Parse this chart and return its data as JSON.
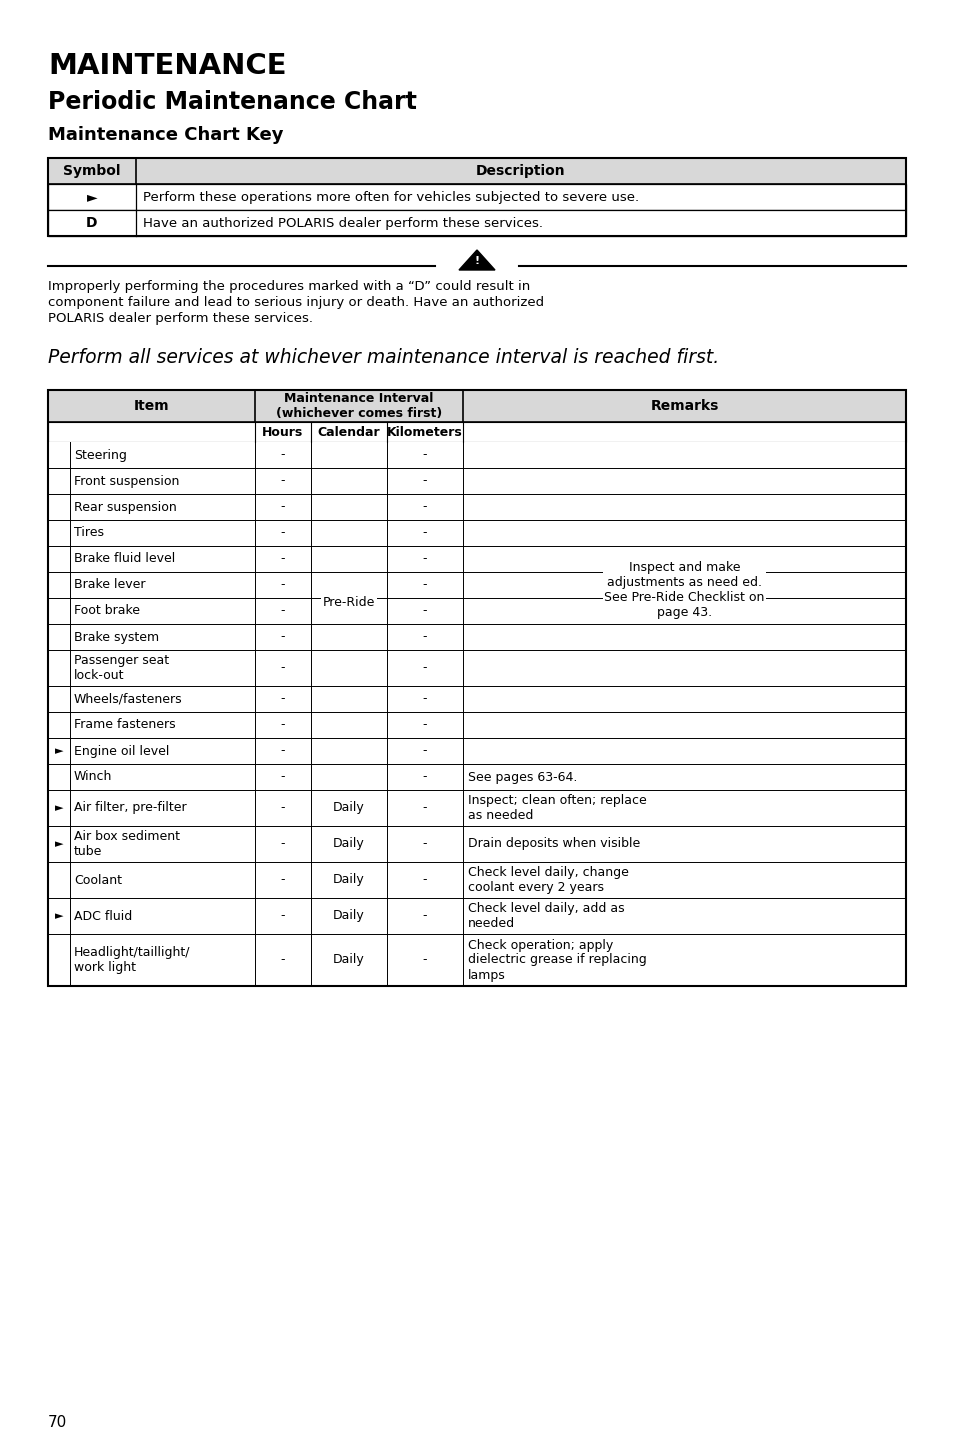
{
  "title1": "MAINTENANCE",
  "title2": "Periodic Maintenance Chart",
  "title3": "Maintenance Chart Key",
  "key_headers": [
    "Symbol",
    "Description"
  ],
  "key_rows": [
    [
      "►",
      "Perform these operations more often for vehicles subjected to severe use."
    ],
    [
      "D",
      "Have an authorized POLARIS dealer perform these services."
    ]
  ],
  "warning_text_line1": "Improperly performing the procedures marked with a “D” could result in",
  "warning_text_line2": "component failure and lead to serious injury or death. Have an authorized",
  "warning_text_line3": "POLARIS dealer perform these services.",
  "perform_text": "Perform all services at whichever maintenance interval is reached first.",
  "sub_headers": [
    "Hours",
    "Calendar",
    "Kilometers"
  ],
  "rows": [
    {
      "symbol": "",
      "item": "Steering",
      "hours": "-",
      "calendar": "",
      "km": "-",
      "remarks": ""
    },
    {
      "symbol": "",
      "item": "Front suspension",
      "hours": "-",
      "calendar": "",
      "km": "-",
      "remarks": ""
    },
    {
      "symbol": "",
      "item": "Rear suspension",
      "hours": "-",
      "calendar": "",
      "km": "-",
      "remarks": ""
    },
    {
      "symbol": "",
      "item": "Tires",
      "hours": "-",
      "calendar": "",
      "km": "-",
      "remarks": ""
    },
    {
      "symbol": "",
      "item": "Brake fluid level",
      "hours": "-",
      "calendar": "",
      "km": "-",
      "remarks": ""
    },
    {
      "symbol": "",
      "item": "Brake lever",
      "hours": "-",
      "calendar": "",
      "km": "-",
      "remarks": ""
    },
    {
      "symbol": "",
      "item": "Foot brake",
      "hours": "-",
      "calendar": "",
      "km": "-",
      "remarks": ""
    },
    {
      "symbol": "",
      "item": "Brake system",
      "hours": "-",
      "calendar": "",
      "km": "-",
      "remarks": ""
    },
    {
      "symbol": "",
      "item": "Passenger seat\nlock-out",
      "hours": "-",
      "calendar": "",
      "km": "-",
      "remarks": ""
    },
    {
      "symbol": "",
      "item": "Wheels/fasteners",
      "hours": "-",
      "calendar": "",
      "km": "-",
      "remarks": ""
    },
    {
      "symbol": "",
      "item": "Frame fasteners",
      "hours": "-",
      "calendar": "",
      "km": "-",
      "remarks": ""
    },
    {
      "symbol": "►",
      "item": "Engine oil level",
      "hours": "-",
      "calendar": "",
      "km": "-",
      "remarks": ""
    },
    {
      "symbol": "",
      "item": "Winch",
      "hours": "-",
      "calendar": "",
      "km": "-",
      "remarks": "See pages 63-64."
    },
    {
      "symbol": "►",
      "item": "Air filter, pre-filter",
      "hours": "-",
      "calendar": "Daily",
      "km": "-",
      "remarks": "Inspect; clean often; replace\nas needed"
    },
    {
      "symbol": "►",
      "item": "Air box sediment\ntube",
      "hours": "-",
      "calendar": "Daily",
      "km": "-",
      "remarks": "Drain deposits when visible"
    },
    {
      "symbol": "",
      "item": "Coolant",
      "hours": "-",
      "calendar": "Daily",
      "km": "-",
      "remarks": "Check level daily, change\ncoolant every 2 years"
    },
    {
      "symbol": "►",
      "item": "ADC fluid",
      "hours": "-",
      "calendar": "Daily",
      "km": "-",
      "remarks": "Check level daily, add as\nneeded"
    },
    {
      "symbol": "",
      "item": "Headlight/taillight/\nwork light",
      "hours": "-",
      "calendar": "Daily",
      "km": "-",
      "remarks": "Check operation; apply\ndielectric grease if replacing\nlamps"
    }
  ],
  "preride_span_rows": 12,
  "preride_text": "Pre-Ride",
  "remarks_span_rows": 11,
  "remarks_span_text": "Inspect and make\nadjustments as need ed.\nSee Pre-Ride Checklist on\npage 43.",
  "page_number": "70",
  "bg_color": "#ffffff",
  "text_color": "#000000",
  "line_color": "#000000",
  "header_gray": "#d8d8d8"
}
